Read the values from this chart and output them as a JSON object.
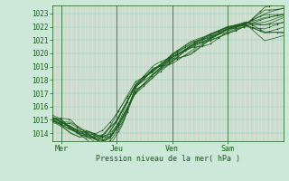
{
  "title": "Pression niveau de la mer( hPa )",
  "ylabel_ticks": [
    1014,
    1015,
    1016,
    1017,
    1018,
    1019,
    1020,
    1021,
    1022,
    1023
  ],
  "ylim": [
    1013.4,
    1023.6
  ],
  "xlim": [
    0,
    100
  ],
  "xtick_positions": [
    4,
    28,
    52,
    76
  ],
  "xtick_labels": [
    "Mer",
    "Jeu",
    "Ven",
    "Sam"
  ],
  "day_lines": [
    4,
    28,
    52,
    76
  ],
  "bg_color": "#cce8d8",
  "plot_bg_color": "#cce8d8",
  "grid_color_v": "#dda0a0",
  "grid_color_h": "#88ccbb",
  "line_color": "#1a5c1a",
  "xlim_end": 100
}
